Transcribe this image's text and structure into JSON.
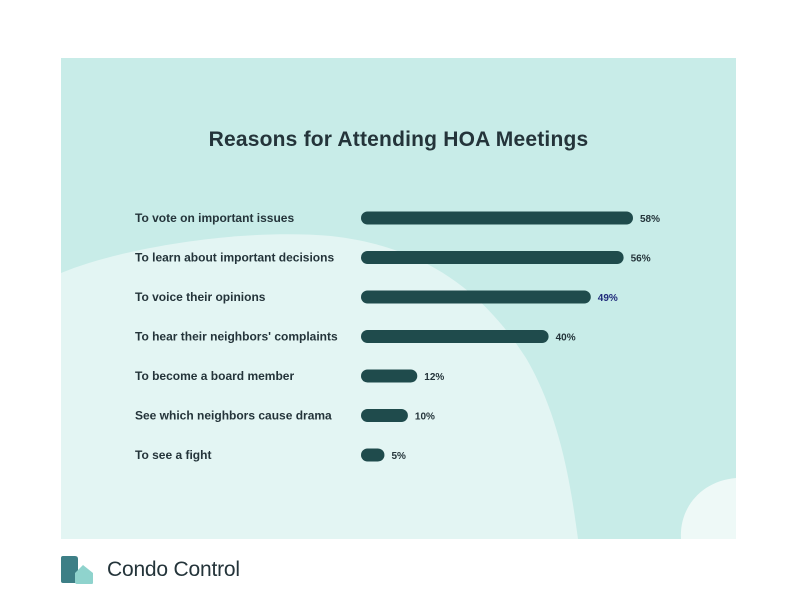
{
  "chart_data": {
    "type": "bar",
    "orientation": "horizontal",
    "title": "Reasons for Attending HOA Meetings",
    "categories": [
      "To vote on important issues",
      "To learn about important decisions",
      "To voice their opinions",
      "To hear their neighbors' complaints",
      "To become a board member",
      "See which neighbors cause drama",
      "To see a fight"
    ],
    "values": [
      58,
      56,
      49,
      40,
      12,
      10,
      5
    ],
    "value_labels": [
      "58%",
      "56%",
      "49%",
      "40%",
      "12%",
      "10%",
      "5%"
    ],
    "unit": "%",
    "xlim": [
      0,
      58
    ],
    "grid": false,
    "bar_color": "#1f4b4c"
  },
  "brand": {
    "name": "Condo Control",
    "logo_icon": "house-tiles-icon"
  },
  "colors": {
    "background": "#c8ece8",
    "shape": "#e3f5f3",
    "bar": "#1f4b4c",
    "text": "#24343a"
  }
}
